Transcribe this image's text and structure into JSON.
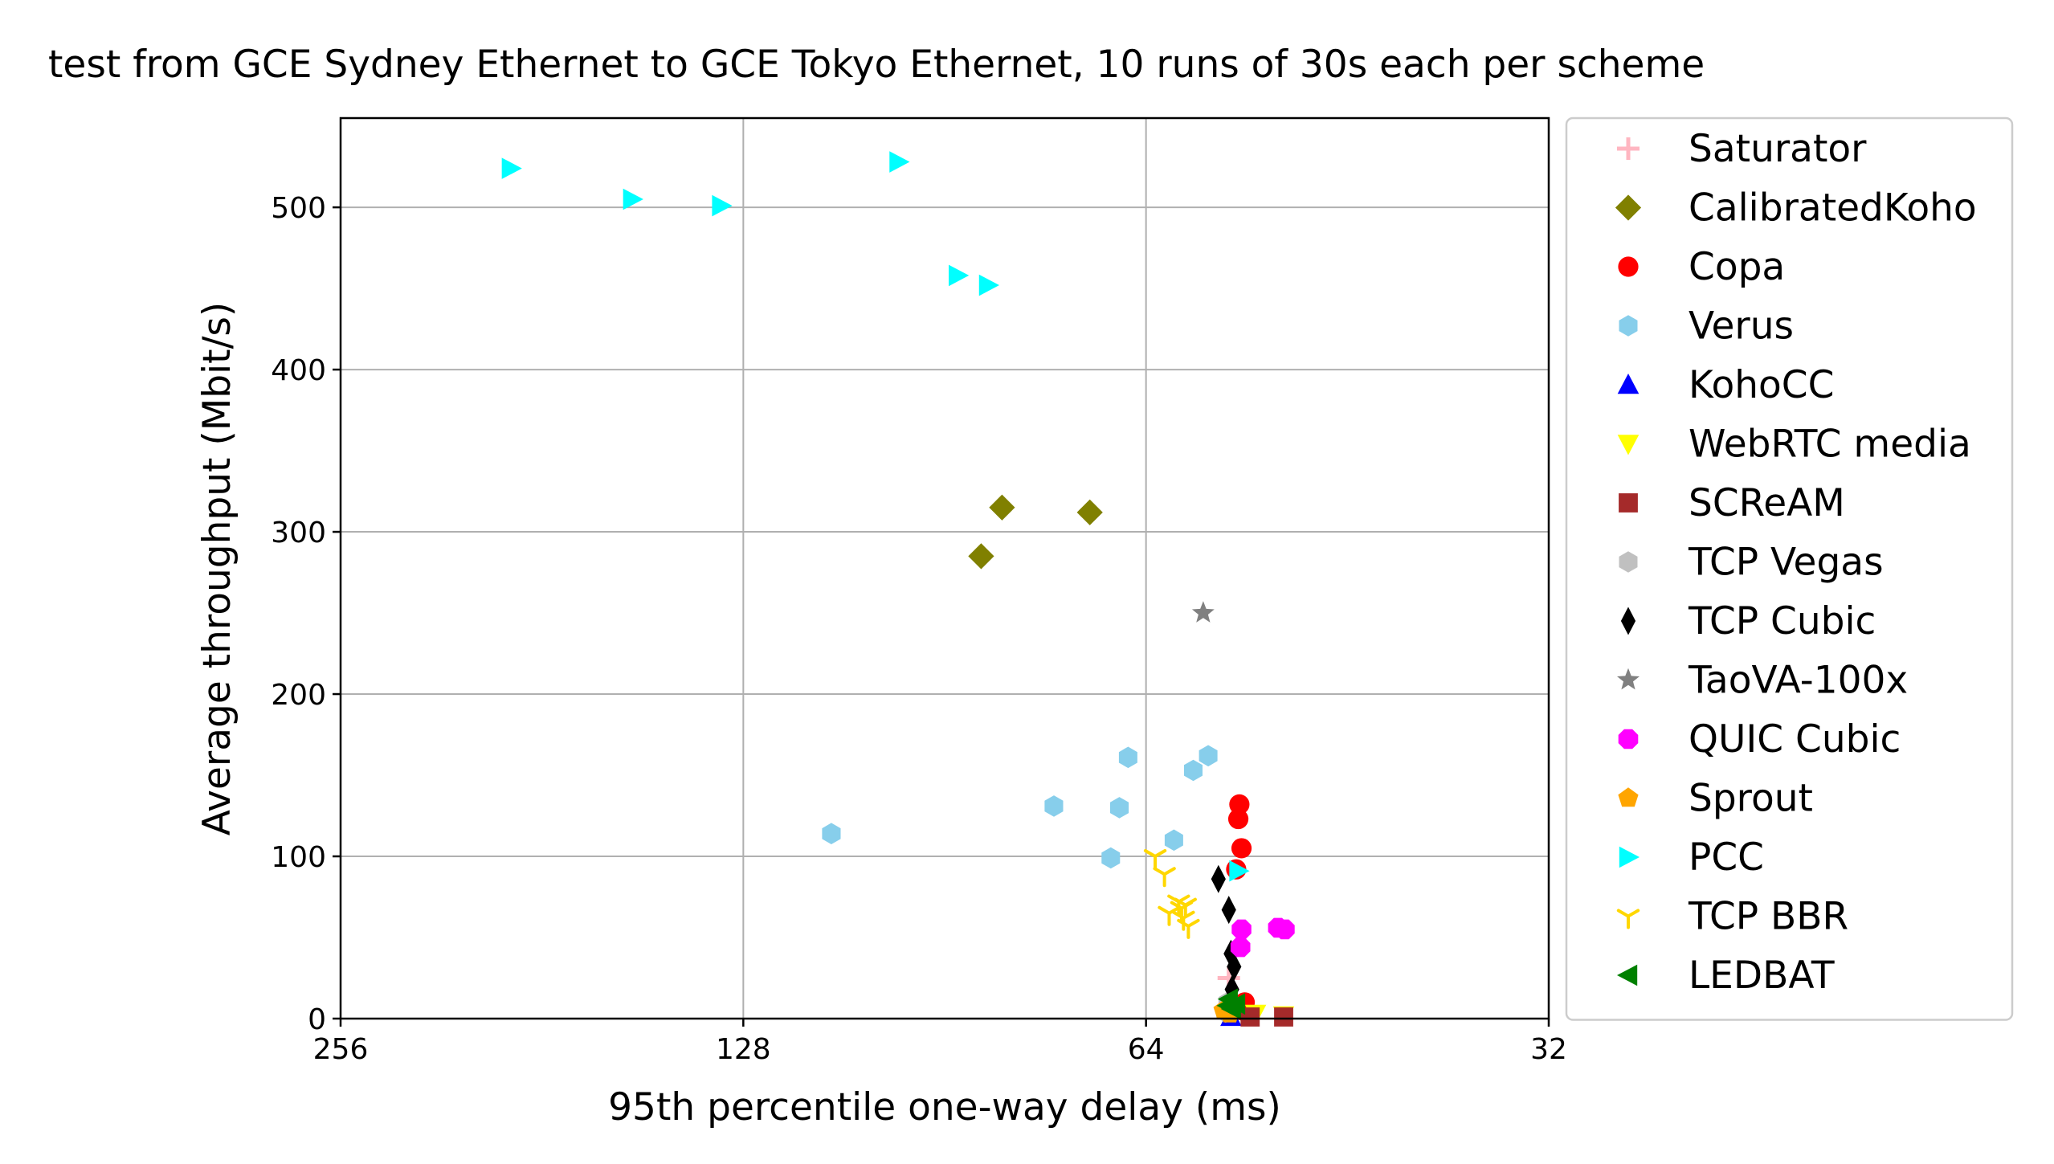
{
  "chart_data": {
    "type": "scatter",
    "title": "test from GCE Sydney Ethernet to GCE Tokyo Ethernet, 10 runs of 30s each per scheme",
    "xlabel": "95th percentile one-way delay (ms)",
    "ylabel": "Average throughput (Mbit/s)",
    "x_scale": "log2",
    "x_reversed": true,
    "xlim": [
      256,
      32
    ],
    "ylim": [
      0,
      555
    ],
    "xticks": [
      "256",
      "128",
      "64",
      "32"
    ],
    "xtick_values": [
      256,
      128,
      64,
      32
    ],
    "yticks": [
      "0",
      "100",
      "200",
      "300",
      "400",
      "500"
    ],
    "ytick_values": [
      0,
      100,
      200,
      300,
      400,
      500
    ],
    "grid": true,
    "legend_position": "outside-right",
    "series": [
      {
        "name": "Saturator",
        "marker": "plus",
        "color": "#ffb6c1",
        "points": [
          [
            55.5,
            25
          ],
          [
            55.0,
            12
          ],
          [
            55.2,
            5
          ]
        ]
      },
      {
        "name": "CalibratedKoho",
        "marker": "diamond",
        "color": "#808000",
        "points": [
          [
            85.0,
            285
          ],
          [
            82.0,
            315
          ],
          [
            70.5,
            312
          ]
        ]
      },
      {
        "name": "Copa",
        "marker": "circle",
        "color": "#ff0000",
        "points": [
          [
            54.5,
            132
          ],
          [
            54.6,
            123
          ],
          [
            54.3,
            105
          ],
          [
            54.8,
            92
          ],
          [
            54.0,
            10
          ],
          [
            54.2,
            5
          ]
        ]
      },
      {
        "name": "Verus",
        "marker": "hexagon",
        "color": "#87ceeb",
        "points": [
          [
            110.0,
            114
          ],
          [
            75.0,
            131
          ],
          [
            68.0,
            99
          ],
          [
            67.0,
            130
          ],
          [
            66.0,
            161
          ],
          [
            61.0,
            110
          ],
          [
            59.0,
            153
          ],
          [
            57.5,
            162
          ],
          [
            55.5,
            10
          ]
        ]
      },
      {
        "name": "KohoCC",
        "marker": "triangle-up",
        "color": "#0000ff",
        "points": [
          [
            55.3,
            1
          ]
        ]
      },
      {
        "name": "WebRTC media",
        "marker": "triangle-down",
        "color": "#ffff00",
        "points": [
          [
            50.5,
            2
          ],
          [
            53.0,
            3
          ]
        ]
      },
      {
        "name": "SCReAM",
        "marker": "square",
        "color": "#a52a2a",
        "points": [
          [
            50.5,
            1
          ],
          [
            53.5,
            1
          ]
        ]
      },
      {
        "name": "TCP Vegas",
        "marker": "hexagon",
        "color": "#c0c0c0",
        "points": [
          [
            55.6,
            10
          ],
          [
            55.8,
            4
          ]
        ]
      },
      {
        "name": "TCP Cubic",
        "marker": "thin-diamond",
        "color": "#000000",
        "points": [
          [
            56.5,
            86
          ],
          [
            55.5,
            67
          ],
          [
            55.3,
            40
          ],
          [
            55.0,
            32
          ],
          [
            55.2,
            18
          ]
        ]
      },
      {
        "name": "TaoVA-100x",
        "marker": "star",
        "color": "#808080",
        "points": [
          [
            58.0,
            250
          ]
        ]
      },
      {
        "name": "QUIC Cubic",
        "marker": "octagon",
        "color": "#ff00ff",
        "points": [
          [
            54.3,
            55
          ],
          [
            54.4,
            44
          ],
          [
            51.0,
            56
          ],
          [
            50.4,
            55
          ]
        ]
      },
      {
        "name": "Sprout",
        "marker": "pentagon",
        "color": "#ffa500",
        "points": [
          [
            56.0,
            5
          ],
          [
            55.4,
            3
          ]
        ]
      },
      {
        "name": "PCC",
        "marker": "triangle-right",
        "color": "#00ffff",
        "points": [
          [
            191.0,
            524
          ],
          [
            155.0,
            505
          ],
          [
            133.0,
            501
          ],
          [
            98.0,
            528
          ],
          [
            88.5,
            458
          ],
          [
            84.0,
            452
          ],
          [
            54.6,
            91
          ]
        ]
      },
      {
        "name": "TCP BBR",
        "marker": "tri-down",
        "color": "#ffd700",
        "points": [
          [
            63.0,
            100
          ],
          [
            62.0,
            89
          ],
          [
            61.5,
            65
          ],
          [
            60.5,
            72
          ],
          [
            60.0,
            62
          ],
          [
            59.5,
            57
          ],
          [
            60.2,
            68
          ],
          [
            59.8,
            70
          ]
        ]
      },
      {
        "name": "LEDBAT",
        "marker": "triangle-left",
        "color": "#008000",
        "points": [
          [
            55.5,
            12
          ],
          [
            54.8,
            9
          ],
          [
            55.2,
            6
          ],
          [
            55.6,
            8
          ]
        ]
      }
    ]
  }
}
